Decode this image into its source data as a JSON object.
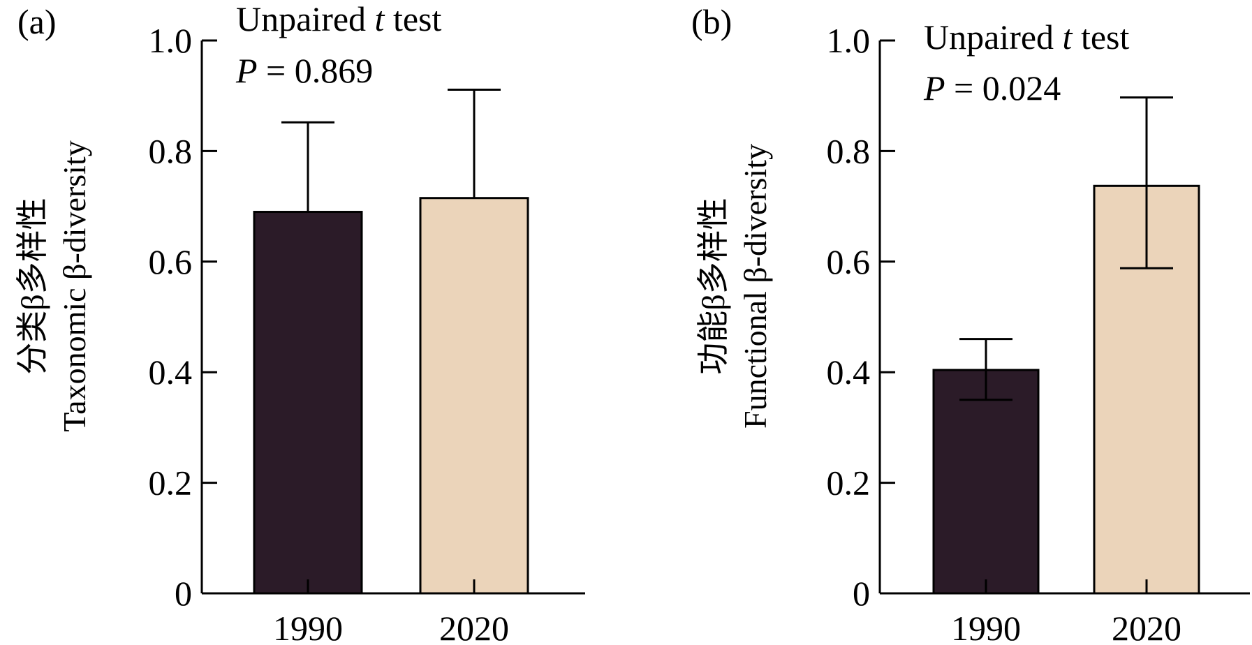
{
  "chart_data": [
    {
      "type": "bar",
      "panel_label": "(a)",
      "categories": [
        "1990",
        "2020"
      ],
      "values": [
        0.69,
        0.715
      ],
      "error_upper": [
        0.852,
        0.911
      ],
      "colors": [
        "#2b1b28",
        "#ebd4ba"
      ],
      "ylabel_zh": "分类β多样性",
      "ylabel_en": "Taxonomic β-diversity",
      "ylim": [
        0,
        1.0
      ],
      "yticks": [
        "0",
        "0.2",
        "0.4",
        "0.6",
        "0.8",
        "1.0"
      ],
      "annotation_line1_pre": "Unpaired ",
      "annotation_line1_italic": "t",
      "annotation_line1_post": " test",
      "annotation_line2_italic": "P",
      "annotation_line2_post": " = 0.869"
    },
    {
      "type": "bar",
      "panel_label": "(b)",
      "categories": [
        "1990",
        "2020"
      ],
      "values": [
        0.404,
        0.737
      ],
      "error_upper": [
        0.46,
        0.897
      ],
      "error_lower": [
        0.35,
        0.588
      ],
      "colors": [
        "#2b1b28",
        "#ebd4ba"
      ],
      "ylabel_zh": "功能β多样性",
      "ylabel_en": "Functional β-diversity",
      "ylim": [
        0,
        1.0
      ],
      "yticks": [
        "0",
        "0.2",
        "0.4",
        "0.6",
        "0.8",
        "1.0"
      ],
      "annotation_line1_pre": "Unpaired ",
      "annotation_line1_italic": "t",
      "annotation_line1_post": " test",
      "annotation_line2_italic": "P",
      "annotation_line2_post": " = 0.024"
    }
  ]
}
